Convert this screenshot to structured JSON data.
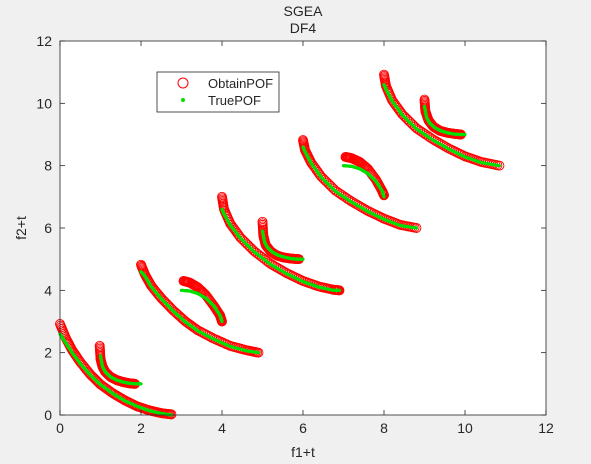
{
  "figure": {
    "background": "#f0f0f0",
    "axes_background": "#ffffff"
  },
  "chart_data": {
    "type": "scatter",
    "title": "SGEA",
    "subtitle": "DF4",
    "xlabel": "f1+t",
    "ylabel": "f2+t",
    "xlim": [
      0,
      12
    ],
    "ylim": [
      0,
      12
    ],
    "xticks": [
      "0",
      "2",
      "4",
      "6",
      "8",
      "10",
      "12"
    ],
    "yticks": [
      "0",
      "2",
      "4",
      "6",
      "8",
      "10",
      "12"
    ],
    "grid": false,
    "box": true,
    "legend": {
      "placement": "upper-left inside axes",
      "entries": [
        "ObtainPOF",
        "TruePOF"
      ]
    },
    "series": [
      {
        "name": "ObtainPOF",
        "marker": "open-circle",
        "color": "#ff0000",
        "curves": [
          {
            "x": [
              0,
              0.15,
              0.3,
              0.5,
              0.75,
              1.0,
              1.3,
              1.6,
              1.9,
              2.2,
              2.5,
              2.75
            ],
            "y": [
              2.92,
              2.45,
              2.08,
              1.7,
              1.3,
              0.98,
              0.7,
              0.47,
              0.28,
              0.15,
              0.06,
              0.02
            ]
          },
          {
            "x": [
              0.98,
              1.0,
              1.05,
              1.12,
              1.25,
              1.4,
              1.55,
              1.7,
              1.85
            ],
            "y": [
              2.22,
              1.8,
              1.55,
              1.38,
              1.22,
              1.12,
              1.06,
              1.02,
              1.0
            ]
          },
          {
            "x": [
              2.0,
              2.1,
              2.25,
              2.5,
              2.8,
              3.1,
              3.4,
              3.8,
              4.2,
              4.6,
              4.9
            ],
            "y": [
              4.82,
              4.5,
              4.15,
              3.75,
              3.35,
              3.0,
              2.72,
              2.45,
              2.22,
              2.08,
              2.0
            ]
          },
          {
            "x": [
              3.05,
              3.2,
              3.4,
              3.6,
              3.8,
              3.95,
              4.0
            ],
            "y": [
              4.3,
              4.25,
              4.1,
              3.85,
              3.5,
              3.2,
              3.0
            ]
          },
          {
            "x": [
              4.0,
              4.05,
              4.2,
              4.45,
              4.8,
              5.2,
              5.6,
              6.0,
              6.4,
              6.75,
              6.9
            ],
            "y": [
              7.0,
              6.6,
              6.15,
              5.7,
              5.25,
              4.85,
              4.55,
              4.3,
              4.12,
              4.02,
              4.0
            ]
          },
          {
            "x": [
              5.0,
              5.02,
              5.08,
              5.2,
              5.35,
              5.5,
              5.7,
              5.9
            ],
            "y": [
              6.2,
              5.75,
              5.45,
              5.25,
              5.12,
              5.06,
              5.02,
              5.0
            ]
          },
          {
            "x": [
              6.0,
              6.05,
              6.2,
              6.45,
              6.8,
              7.2,
              7.6,
              8.0,
              8.4,
              8.8
            ],
            "y": [
              8.82,
              8.5,
              8.1,
              7.65,
              7.2,
              6.85,
              6.55,
              6.3,
              6.1,
              6.0
            ]
          },
          {
            "x": [
              7.05,
              7.2,
              7.4,
              7.6,
              7.8,
              7.95,
              8.0
            ],
            "y": [
              8.28,
              8.24,
              8.12,
              7.9,
              7.55,
              7.2,
              7.05
            ]
          },
          {
            "x": [
              8.0,
              8.05,
              8.2,
              8.45,
              8.8,
              9.2,
              9.6,
              10.0,
              10.4,
              10.85
            ],
            "y": [
              10.92,
              10.55,
              10.1,
              9.65,
              9.2,
              8.85,
              8.55,
              8.3,
              8.12,
              8.0
            ]
          },
          {
            "x": [
              9.0,
              9.02,
              9.1,
              9.22,
              9.38,
              9.55,
              9.75,
              9.9
            ],
            "y": [
              10.12,
              9.75,
              9.45,
              9.25,
              9.12,
              9.06,
              9.02,
              9.0
            ]
          }
        ]
      },
      {
        "name": "TruePOF",
        "marker": "point",
        "color": "#00e000",
        "curves": [
          {
            "x": [
              0,
              0.15,
              0.3,
              0.5,
              0.75,
              1.0,
              1.3,
              1.6,
              1.9,
              2.2,
              2.5,
              2.75
            ],
            "y": [
              2.6,
              2.3,
              2.0,
              1.65,
              1.28,
              0.97,
              0.69,
              0.46,
              0.28,
              0.14,
              0.05,
              0.0
            ]
          },
          {
            "x": [
              1.0,
              1.05,
              1.12,
              1.25,
              1.4,
              1.55,
              1.7,
              1.85,
              2.0
            ],
            "y": [
              1.9,
              1.55,
              1.38,
              1.22,
              1.12,
              1.06,
              1.02,
              1.0,
              1.0
            ]
          },
          {
            "x": [
              2.0,
              2.1,
              2.25,
              2.5,
              2.8,
              3.1,
              3.4,
              3.8,
              4.2,
              4.6,
              4.9
            ],
            "y": [
              4.6,
              4.45,
              4.12,
              3.73,
              3.33,
              2.98,
              2.7,
              2.43,
              2.2,
              2.06,
              2.0
            ]
          },
          {
            "x": [
              3.0,
              3.2,
              3.4,
              3.6,
              3.8,
              3.95,
              4.0
            ],
            "y": [
              4.0,
              3.98,
              3.9,
              3.75,
              3.5,
              3.2,
              3.0
            ]
          },
          {
            "x": [
              4.0,
              4.05,
              4.2,
              4.45,
              4.8,
              5.2,
              5.6,
              6.0,
              6.4,
              6.75,
              6.9
            ],
            "y": [
              6.6,
              6.45,
              6.1,
              5.68,
              5.23,
              4.83,
              4.53,
              4.28,
              4.1,
              4.0,
              4.0
            ]
          },
          {
            "x": [
              5.0,
              5.05,
              5.12,
              5.25,
              5.4,
              5.55,
              5.7,
              5.85,
              6.0
            ],
            "y": [
              5.9,
              5.55,
              5.38,
              5.22,
              5.12,
              5.06,
              5.02,
              5.0,
              5.0
            ]
          },
          {
            "x": [
              6.0,
              6.05,
              6.2,
              6.45,
              6.8,
              7.2,
              7.6,
              8.0,
              8.4,
              8.8
            ],
            "y": [
              8.6,
              8.45,
              8.08,
              7.63,
              7.18,
              6.83,
              6.53,
              6.28,
              6.08,
              6.0
            ]
          },
          {
            "x": [
              7.0,
              7.2,
              7.4,
              7.6,
              7.8,
              7.95,
              8.0
            ],
            "y": [
              8.0,
              7.98,
              7.9,
              7.75,
              7.5,
              7.2,
              7.0
            ]
          },
          {
            "x": [
              8.0,
              8.05,
              8.2,
              8.45,
              8.8,
              9.2,
              9.6,
              10.0,
              10.4,
              10.85
            ],
            "y": [
              10.6,
              10.45,
              10.08,
              9.63,
              9.18,
              8.83,
              8.53,
              8.28,
              8.1,
              8.0
            ]
          },
          {
            "x": [
              9.0,
              9.05,
              9.12,
              9.25,
              9.4,
              9.55,
              9.7,
              9.85,
              10.0
            ],
            "y": [
              9.9,
              9.55,
              9.38,
              9.22,
              9.12,
              9.06,
              9.02,
              9.0,
              9.0
            ]
          }
        ]
      }
    ]
  }
}
